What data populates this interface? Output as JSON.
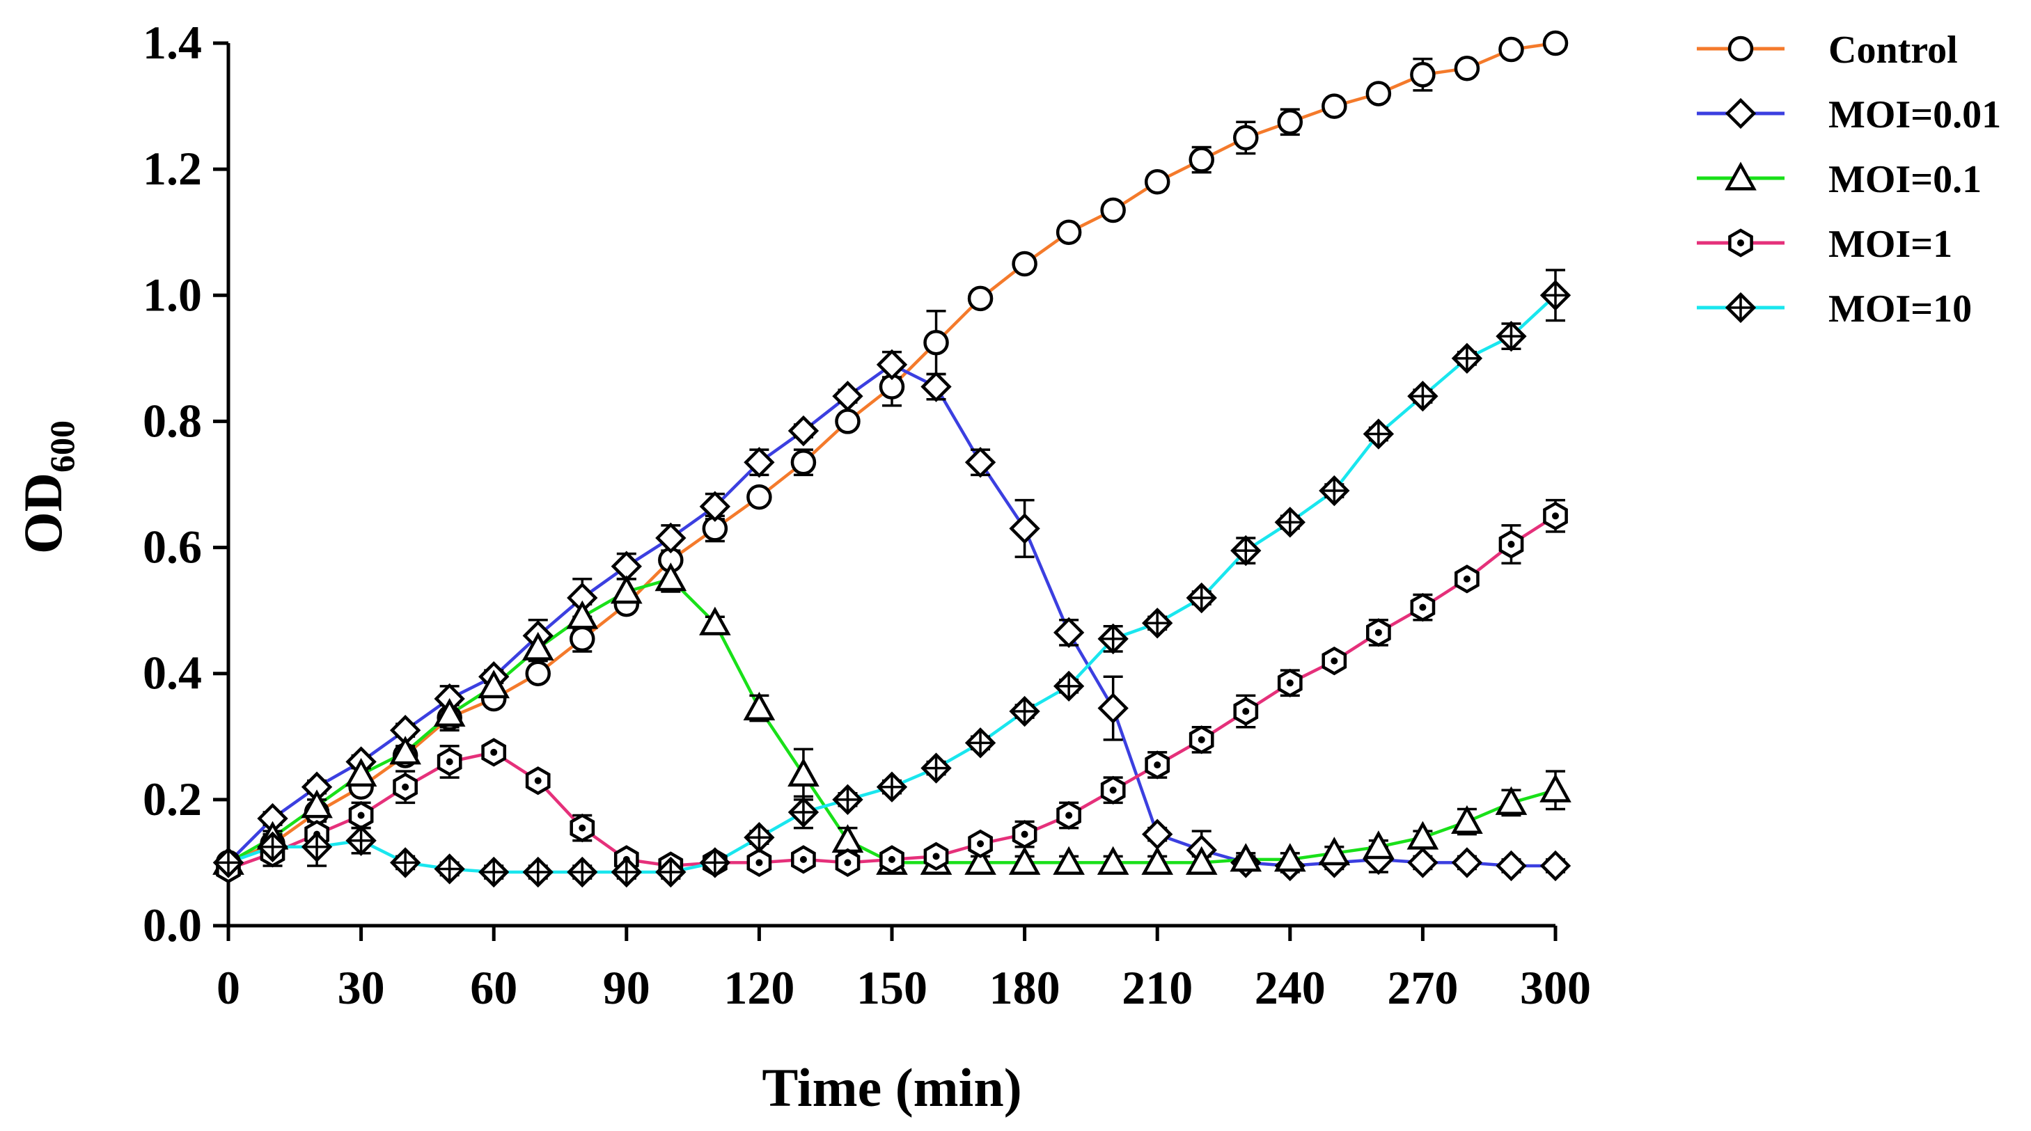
{
  "chart_data": {
    "type": "line",
    "xlabel": "Time (min)",
    "ylabel": "OD",
    "ylabel_subscript": "600",
    "xlim": [
      0,
      300
    ],
    "ylim": [
      0,
      1.4
    ],
    "xticks": [
      0,
      30,
      60,
      90,
      120,
      150,
      180,
      210,
      240,
      270,
      300
    ],
    "xtick_labels": [
      "0",
      "30",
      "60",
      "90",
      "120",
      "150",
      "180",
      "210",
      "240",
      "270",
      "300"
    ],
    "yticks": [
      0,
      0.2,
      0.4,
      0.6,
      0.8,
      1.0,
      1.2,
      1.4
    ],
    "ytick_labels": [
      "0.0",
      "0.2",
      "0.4",
      "0.6",
      "0.8",
      "1.0",
      "1.2",
      "1.4"
    ],
    "grid": false,
    "legend_position": "right",
    "series": [
      {
        "name": "Control",
        "color": "#F47A2B",
        "marker": "circle",
        "x": [
          0,
          10,
          20,
          30,
          40,
          50,
          60,
          70,
          80,
          90,
          100,
          110,
          120,
          130,
          140,
          150,
          160,
          170,
          180,
          190,
          200,
          210,
          220,
          230,
          240,
          250,
          260,
          270,
          280,
          290,
          300
        ],
        "y": [
          0.1,
          0.13,
          0.18,
          0.22,
          0.27,
          0.33,
          0.36,
          0.4,
          0.455,
          0.51,
          0.58,
          0.63,
          0.68,
          0.735,
          0.8,
          0.855,
          0.925,
          0.995,
          1.05,
          1.1,
          1.135,
          1.18,
          1.215,
          1.25,
          1.275,
          1.3,
          1.32,
          1.35,
          1.36,
          1.39,
          1.4
        ],
        "err": [
          0.01,
          0.01,
          0.01,
          0.01,
          0.01,
          0.02,
          0.01,
          0.01,
          0.02,
          0.01,
          0.01,
          0.02,
          0.01,
          0.02,
          0.01,
          0.03,
          0.05,
          0.01,
          0.01,
          0.01,
          0.01,
          0.01,
          0.02,
          0.025,
          0.02,
          0.01,
          0.01,
          0.025,
          0.01,
          0.01,
          0.01
        ]
      },
      {
        "name": "MOI=0.01",
        "color": "#3B3FE0",
        "marker": "diamond",
        "x": [
          0,
          10,
          20,
          30,
          40,
          50,
          60,
          70,
          80,
          90,
          100,
          110,
          120,
          130,
          140,
          150,
          160,
          170,
          180,
          190,
          200,
          210,
          220,
          230,
          240,
          250,
          260,
          270,
          280,
          290,
          300
        ],
        "y": [
          0.1,
          0.17,
          0.22,
          0.26,
          0.31,
          0.36,
          0.395,
          0.46,
          0.52,
          0.57,
          0.615,
          0.665,
          0.735,
          0.785,
          0.84,
          0.89,
          0.855,
          0.735,
          0.63,
          0.465,
          0.345,
          0.145,
          0.12,
          0.1,
          0.095,
          0.1,
          0.105,
          0.1,
          0.1,
          0.095,
          0.095
        ],
        "err": [
          0.01,
          0.01,
          0.01,
          0.01,
          0.01,
          0.02,
          0.01,
          0.025,
          0.03,
          0.02,
          0.02,
          0.02,
          0.02,
          0.01,
          0.01,
          0.02,
          0.02,
          0.02,
          0.045,
          0.02,
          0.05,
          0.01,
          0.03,
          0.01,
          0.01,
          0.01,
          0.02,
          0.01,
          0.01,
          0.01,
          0.01
        ]
      },
      {
        "name": "MOI=0.1",
        "color": "#19E019",
        "marker": "triangle",
        "x": [
          0,
          10,
          20,
          30,
          40,
          50,
          60,
          70,
          80,
          90,
          100,
          110,
          120,
          130,
          140,
          150,
          160,
          170,
          180,
          190,
          200,
          210,
          220,
          230,
          240,
          250,
          260,
          270,
          280,
          290,
          300
        ],
        "y": [
          0.1,
          0.14,
          0.19,
          0.24,
          0.275,
          0.335,
          0.38,
          0.44,
          0.49,
          0.53,
          0.55,
          0.48,
          0.345,
          0.24,
          0.135,
          0.1,
          0.1,
          0.1,
          0.1,
          0.1,
          0.1,
          0.1,
          0.1,
          0.105,
          0.105,
          0.115,
          0.125,
          0.14,
          0.165,
          0.195,
          0.215
        ],
        "err": [
          0.01,
          0.01,
          0.01,
          0.01,
          0.01,
          0.02,
          0.02,
          0.02,
          0.02,
          0.02,
          0.02,
          0.01,
          0.02,
          0.04,
          0.02,
          0.01,
          0.01,
          0.01,
          0.01,
          0.01,
          0.01,
          0.01,
          0.01,
          0.01,
          0.01,
          0.01,
          0.01,
          0.01,
          0.02,
          0.02,
          0.03
        ]
      },
      {
        "name": "MOI=1",
        "color": "#E5307A",
        "marker": "hexagon-dot",
        "x": [
          0,
          10,
          20,
          30,
          40,
          50,
          60,
          70,
          80,
          90,
          100,
          110,
          120,
          130,
          140,
          150,
          160,
          170,
          180,
          190,
          200,
          210,
          220,
          230,
          240,
          250,
          260,
          270,
          280,
          290,
          300
        ],
        "y": [
          0.09,
          0.115,
          0.145,
          0.175,
          0.22,
          0.26,
          0.275,
          0.23,
          0.155,
          0.105,
          0.095,
          0.1,
          0.1,
          0.105,
          0.1,
          0.105,
          0.11,
          0.13,
          0.145,
          0.175,
          0.215,
          0.255,
          0.295,
          0.34,
          0.385,
          0.42,
          0.465,
          0.505,
          0.55,
          0.605,
          0.65
        ],
        "err": [
          0.01,
          0.02,
          0.02,
          0.02,
          0.025,
          0.025,
          0.01,
          0.01,
          0.02,
          0.01,
          0.01,
          0.01,
          0.01,
          0.01,
          0.01,
          0.01,
          0.01,
          0.01,
          0.02,
          0.02,
          0.02,
          0.02,
          0.02,
          0.025,
          0.02,
          0.01,
          0.02,
          0.02,
          0.01,
          0.03,
          0.025
        ]
      },
      {
        "name": "MOI=10",
        "color": "#19E6EE",
        "marker": "diamond-cross",
        "x": [
          0,
          10,
          20,
          30,
          40,
          50,
          60,
          70,
          80,
          90,
          100,
          110,
          120,
          130,
          140,
          150,
          160,
          170,
          180,
          190,
          200,
          210,
          220,
          230,
          240,
          250,
          260,
          270,
          280,
          290,
          300
        ],
        "y": [
          0.1,
          0.125,
          0.125,
          0.135,
          0.1,
          0.09,
          0.085,
          0.085,
          0.085,
          0.085,
          0.085,
          0.1,
          0.14,
          0.18,
          0.2,
          0.22,
          0.25,
          0.29,
          0.34,
          0.38,
          0.455,
          0.48,
          0.52,
          0.595,
          0.64,
          0.69,
          0.78,
          0.84,
          0.9,
          0.935,
          1.0
        ],
        "err": [
          0.01,
          0.02,
          0.03,
          0.02,
          0.01,
          0.01,
          0.01,
          0.01,
          0.01,
          0.01,
          0.01,
          0.01,
          0.01,
          0.025,
          0.01,
          0.01,
          0.01,
          0.01,
          0.01,
          0.01,
          0.02,
          0.01,
          0.01,
          0.02,
          0.01,
          0.01,
          0.01,
          0.01,
          0.01,
          0.02,
          0.04
        ]
      }
    ]
  }
}
